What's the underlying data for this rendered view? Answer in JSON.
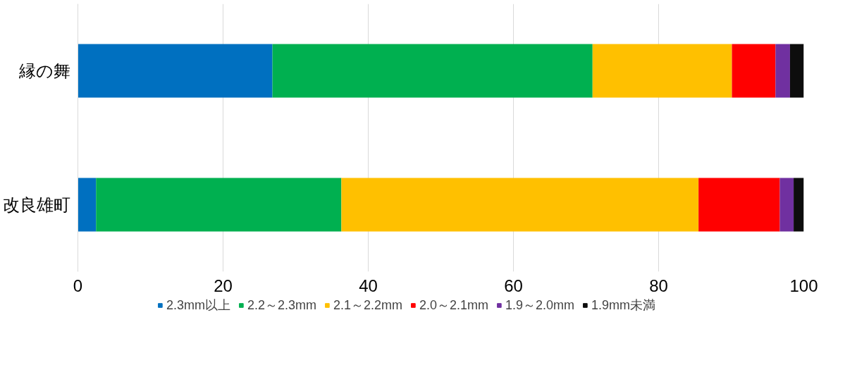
{
  "chart_data": {
    "type": "bar",
    "orientation": "horizontal",
    "stacked": true,
    "categories": [
      "縁の舞",
      "改良雄町"
    ],
    "series": [
      {
        "name": "2.3mm以上",
        "color": "#0070c0",
        "values": [
          26.8,
          2.5
        ]
      },
      {
        "name": "2.2～2.3mm",
        "color": "#00b050",
        "values": [
          44.1,
          33.8
        ]
      },
      {
        "name": "2.1～2.2mm",
        "color": "#ffc000",
        "values": [
          19.2,
          49.2
        ]
      },
      {
        "name": "2.0～2.1mm",
        "color": "#ff0000",
        "values": [
          6.0,
          11.2
        ]
      },
      {
        "name": "1.9～2.0mm",
        "color": "#7030a0",
        "values": [
          2.0,
          1.9
        ]
      },
      {
        "name": "1.9mm未満",
        "color": "#0d0d0d",
        "values": [
          1.9,
          1.4
        ]
      }
    ],
    "xlim": [
      0,
      100
    ],
    "xticks": [
      0,
      20,
      40,
      60,
      80,
      100
    ],
    "grid": "x",
    "legend": "bottom"
  }
}
